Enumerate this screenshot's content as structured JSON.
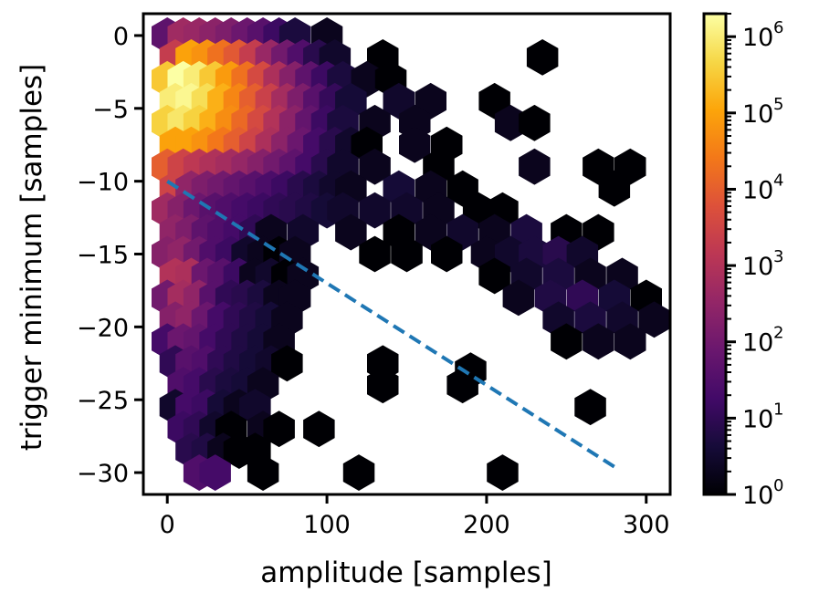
{
  "chart_data": {
    "type": "hexbin",
    "title": "",
    "xlabel": "amplitude [samples]",
    "ylabel": "trigger minimum [samples]",
    "xlim": [
      -15,
      315
    ],
    "ylim": [
      -31.5,
      1.5
    ],
    "xticks": [
      0,
      100,
      200,
      300
    ],
    "yticks": [
      0,
      -5,
      -10,
      -15,
      -20,
      -25,
      -30
    ],
    "hex_size": 5.5,
    "colorscale": "inferno",
    "color_scale_type": "log",
    "colorbar": {
      "range": [
        1,
        2000000
      ],
      "ticks": [
        {
          "base": "10",
          "exp": "0",
          "value": 1
        },
        {
          "base": "10",
          "exp": "1",
          "value": 10
        },
        {
          "base": "10",
          "exp": "2",
          "value": 100
        },
        {
          "base": "10",
          "exp": "3",
          "value": 1000
        },
        {
          "base": "10",
          "exp": "4",
          "value": 10000
        },
        {
          "base": "10",
          "exp": "5",
          "value": 100000
        },
        {
          "base": "10",
          "exp": "6",
          "value": 1000000
        }
      ]
    },
    "line": {
      "style": "dashed",
      "color": "#1f77b4",
      "x": [
        0,
        280
      ],
      "y": [
        -10,
        -29.6
      ]
    },
    "hexbins": [
      [
        0,
        0,
        50
      ],
      [
        10,
        0,
        500
      ],
      [
        20,
        0,
        400
      ],
      [
        30,
        0,
        250
      ],
      [
        40,
        0,
        150
      ],
      [
        50,
        0,
        80
      ],
      [
        60,
        0,
        40
      ],
      [
        70,
        0,
        15
      ],
      [
        80,
        0,
        5
      ],
      [
        100,
        0,
        2
      ],
      [
        5,
        -1.5,
        2000
      ],
      [
        15,
        -1.5,
        100000
      ],
      [
        25,
        -1.5,
        60000
      ],
      [
        35,
        -1.5,
        20000
      ],
      [
        45,
        -1.5,
        8000
      ],
      [
        55,
        -1.5,
        2000
      ],
      [
        65,
        -1.5,
        400
      ],
      [
        75,
        -1.5,
        100
      ],
      [
        85,
        -1.5,
        30
      ],
      [
        95,
        -1.5,
        8
      ],
      [
        105,
        -1.5,
        3
      ],
      [
        135,
        -1.5,
        1
      ],
      [
        235,
        -1.5,
        1
      ],
      [
        0,
        -3,
        300000
      ],
      [
        10,
        -3,
        2000000
      ],
      [
        20,
        -3,
        1000000
      ],
      [
        30,
        -3,
        300000
      ],
      [
        40,
        -3,
        80000
      ],
      [
        50,
        -3,
        20000
      ],
      [
        60,
        -3,
        4000
      ],
      [
        70,
        -3,
        800
      ],
      [
        80,
        -3,
        200
      ],
      [
        90,
        -3,
        50
      ],
      [
        100,
        -3,
        15
      ],
      [
        110,
        -3,
        5
      ],
      [
        125,
        -3,
        2
      ],
      [
        140,
        -3,
        1
      ],
      [
        5,
        -4.5,
        1000000
      ],
      [
        15,
        -4.5,
        1500000
      ],
      [
        25,
        -4.5,
        600000
      ],
      [
        35,
        -4.5,
        150000
      ],
      [
        45,
        -4.5,
        40000
      ],
      [
        55,
        -4.5,
        10000
      ],
      [
        65,
        -4.5,
        2500
      ],
      [
        75,
        -4.5,
        600
      ],
      [
        85,
        -4.5,
        150
      ],
      [
        95,
        -4.5,
        40
      ],
      [
        105,
        -4.5,
        12
      ],
      [
        115,
        -4.5,
        4
      ],
      [
        145,
        -4.5,
        3
      ],
      [
        165,
        -4.5,
        2
      ],
      [
        205,
        -4.5,
        1
      ],
      [
        0,
        -6,
        400000
      ],
      [
        10,
        -6,
        800000
      ],
      [
        20,
        -6,
        400000
      ],
      [
        30,
        -6,
        150000
      ],
      [
        40,
        -6,
        50000
      ],
      [
        50,
        -6,
        15000
      ],
      [
        60,
        -6,
        4000
      ],
      [
        70,
        -6,
        1000
      ],
      [
        80,
        -6,
        250
      ],
      [
        90,
        -6,
        60
      ],
      [
        100,
        -6,
        15
      ],
      [
        110,
        -6,
        5
      ],
      [
        130,
        -6,
        2
      ],
      [
        155,
        -6,
        2
      ],
      [
        215,
        -6,
        2
      ],
      [
        230,
        -6,
        1
      ],
      [
        5,
        -7.5,
        100000
      ],
      [
        15,
        -7.5,
        100000
      ],
      [
        25,
        -7.5,
        60000
      ],
      [
        35,
        -7.5,
        25000
      ],
      [
        45,
        -7.5,
        10000
      ],
      [
        55,
        -7.5,
        3000
      ],
      [
        65,
        -7.5,
        800
      ],
      [
        75,
        -7.5,
        250
      ],
      [
        85,
        -7.5,
        80
      ],
      [
        95,
        -7.5,
        20
      ],
      [
        105,
        -7.5,
        8
      ],
      [
        115,
        -7.5,
        3
      ],
      [
        125,
        -7.5,
        1
      ],
      [
        155,
        -7.5,
        2
      ],
      [
        175,
        -7.5,
        1
      ],
      [
        0,
        -9,
        10000
      ],
      [
        10,
        -9,
        3000
      ],
      [
        20,
        -9,
        1500
      ],
      [
        30,
        -9,
        900
      ],
      [
        40,
        -9,
        600
      ],
      [
        50,
        -9,
        350
      ],
      [
        60,
        -9,
        200
      ],
      [
        70,
        -9,
        100
      ],
      [
        80,
        -9,
        50
      ],
      [
        90,
        -9,
        20
      ],
      [
        100,
        -9,
        8
      ],
      [
        110,
        -9,
        3
      ],
      [
        130,
        -9,
        2
      ],
      [
        170,
        -9,
        1
      ],
      [
        230,
        -9,
        2
      ],
      [
        270,
        -9,
        1
      ],
      [
        290,
        -9,
        1
      ],
      [
        5,
        -10.5,
        3000
      ],
      [
        15,
        -10.5,
        300
      ],
      [
        25,
        -10.5,
        150
      ],
      [
        35,
        -10.5,
        100
      ],
      [
        45,
        -10.5,
        60
      ],
      [
        55,
        -10.5,
        40
      ],
      [
        65,
        -10.5,
        25
      ],
      [
        75,
        -10.5,
        15
      ],
      [
        85,
        -10.5,
        8
      ],
      [
        95,
        -10.5,
        5
      ],
      [
        105,
        -10.5,
        3
      ],
      [
        115,
        -10.5,
        2
      ],
      [
        145,
        -10.5,
        4
      ],
      [
        165,
        -10.5,
        2
      ],
      [
        185,
        -10.5,
        1
      ],
      [
        280,
        -10.5,
        1
      ],
      [
        0,
        -12,
        500
      ],
      [
        10,
        -12,
        200
      ],
      [
        20,
        -12,
        80
      ],
      [
        30,
        -12,
        40
      ],
      [
        40,
        -12,
        30
      ],
      [
        50,
        -12,
        20
      ],
      [
        60,
        -12,
        15
      ],
      [
        70,
        -12,
        10
      ],
      [
        80,
        -12,
        8
      ],
      [
        90,
        -12,
        6
      ],
      [
        100,
        -12,
        4
      ],
      [
        110,
        -12,
        3
      ],
      [
        130,
        -12,
        3
      ],
      [
        150,
        -12,
        3
      ],
      [
        170,
        -12,
        2
      ],
      [
        195,
        -12,
        1
      ],
      [
        210,
        -12,
        1
      ],
      [
        5,
        -13.5,
        300
      ],
      [
        15,
        -13.5,
        150
      ],
      [
        25,
        -13.5,
        50
      ],
      [
        35,
        -13.5,
        30
      ],
      [
        45,
        -13.5,
        20
      ],
      [
        55,
        -13.5,
        10
      ],
      [
        65,
        -13.5,
        2
      ],
      [
        85,
        -13.5,
        3
      ],
      [
        115,
        -13.5,
        2
      ],
      [
        145,
        -13.5,
        1
      ],
      [
        165,
        -13.5,
        2
      ],
      [
        185,
        -13.5,
        3
      ],
      [
        205,
        -13.5,
        2
      ],
      [
        225,
        -13.5,
        5
      ],
      [
        250,
        -13.5,
        1
      ],
      [
        270,
        -13.5,
        1
      ],
      [
        0,
        -15,
        200
      ],
      [
        10,
        -15,
        300
      ],
      [
        20,
        -15,
        100
      ],
      [
        30,
        -15,
        30
      ],
      [
        40,
        -15,
        15
      ],
      [
        50,
        -15,
        3
      ],
      [
        60,
        -15,
        2
      ],
      [
        70,
        -15,
        1
      ],
      [
        80,
        -15,
        2
      ],
      [
        130,
        -15,
        1
      ],
      [
        150,
        -15,
        1
      ],
      [
        175,
        -15,
        1
      ],
      [
        200,
        -15,
        2
      ],
      [
        215,
        -15,
        3
      ],
      [
        230,
        -15,
        5
      ],
      [
        245,
        -15,
        8
      ],
      [
        260,
        -15,
        3
      ],
      [
        5,
        -16.5,
        1000
      ],
      [
        15,
        -16.5,
        800
      ],
      [
        25,
        -16.5,
        80
      ],
      [
        35,
        -16.5,
        40
      ],
      [
        45,
        -16.5,
        15
      ],
      [
        55,
        -16.5,
        2
      ],
      [
        65,
        -16.5,
        3
      ],
      [
        75,
        -16.5,
        1
      ],
      [
        85,
        -16.5,
        2
      ],
      [
        205,
        -16.5,
        1
      ],
      [
        225,
        -16.5,
        3
      ],
      [
        245,
        -16.5,
        5
      ],
      [
        265,
        -16.5,
        2
      ],
      [
        285,
        -16.5,
        2
      ],
      [
        0,
        -18,
        100
      ],
      [
        10,
        -18,
        600
      ],
      [
        20,
        -18,
        300
      ],
      [
        30,
        -18,
        40
      ],
      [
        40,
        -18,
        10
      ],
      [
        50,
        -18,
        8
      ],
      [
        60,
        -18,
        5
      ],
      [
        70,
        -18,
        2
      ],
      [
        80,
        -18,
        2
      ],
      [
        220,
        -18,
        2
      ],
      [
        240,
        -18,
        6
      ],
      [
        260,
        -18,
        10
      ],
      [
        280,
        -18,
        4
      ],
      [
        300,
        -18,
        1
      ],
      [
        5,
        -19.5,
        200
      ],
      [
        15,
        -19.5,
        300
      ],
      [
        25,
        -19.5,
        80
      ],
      [
        35,
        -19.5,
        20
      ],
      [
        45,
        -19.5,
        10
      ],
      [
        55,
        -19.5,
        6
      ],
      [
        65,
        -19.5,
        4
      ],
      [
        75,
        -19.5,
        2
      ],
      [
        245,
        -19.5,
        3
      ],
      [
        265,
        -19.5,
        5
      ],
      [
        285,
        -19.5,
        3
      ],
      [
        305,
        -19.5,
        2
      ],
      [
        0,
        -21,
        20
      ],
      [
        10,
        -21,
        80
      ],
      [
        20,
        -21,
        60
      ],
      [
        30,
        -21,
        20
      ],
      [
        40,
        -21,
        10
      ],
      [
        50,
        -21,
        6
      ],
      [
        60,
        -21,
        4
      ],
      [
        70,
        -21,
        2
      ],
      [
        250,
        -21,
        1
      ],
      [
        270,
        -21,
        2
      ],
      [
        290,
        -21,
        2
      ],
      [
        5,
        -22.5,
        10
      ],
      [
        15,
        -22.5,
        40
      ],
      [
        25,
        -22.5,
        30
      ],
      [
        35,
        -22.5,
        10
      ],
      [
        45,
        -22.5,
        6
      ],
      [
        55,
        -22.5,
        4
      ],
      [
        65,
        -22.5,
        3
      ],
      [
        75,
        -22.5,
        1
      ],
      [
        135,
        -22.5,
        1
      ],
      [
        10,
        -24,
        30
      ],
      [
        20,
        -24,
        20
      ],
      [
        30,
        -24,
        8
      ],
      [
        40,
        -24,
        5
      ],
      [
        50,
        -24,
        4
      ],
      [
        60,
        -24,
        2
      ],
      [
        135,
        -24,
        1
      ],
      [
        185,
        -24,
        1
      ],
      [
        190,
        -23,
        1
      ],
      [
        5,
        -25.5,
        3
      ],
      [
        15,
        -25.5,
        20
      ],
      [
        25,
        -25.5,
        15
      ],
      [
        35,
        -25.5,
        4
      ],
      [
        45,
        -25.5,
        2
      ],
      [
        55,
        -25.5,
        3
      ],
      [
        265,
        -25.5,
        1
      ],
      [
        10,
        -27,
        15
      ],
      [
        20,
        -27,
        10
      ],
      [
        30,
        -27,
        3
      ],
      [
        40,
        -27,
        1
      ],
      [
        60,
        -27,
        2
      ],
      [
        70,
        -27,
        1
      ],
      [
        95,
        -27,
        1
      ],
      [
        15,
        -28.5,
        8
      ],
      [
        25,
        -28.5,
        6
      ],
      [
        35,
        -28.5,
        2
      ],
      [
        45,
        -28.5,
        1
      ],
      [
        55,
        -28.5,
        1
      ],
      [
        20,
        -30,
        30
      ],
      [
        30,
        -30,
        20
      ],
      [
        60,
        -30,
        1
      ],
      [
        120,
        -30,
        1
      ],
      [
        210,
        -30,
        1
      ]
    ]
  }
}
